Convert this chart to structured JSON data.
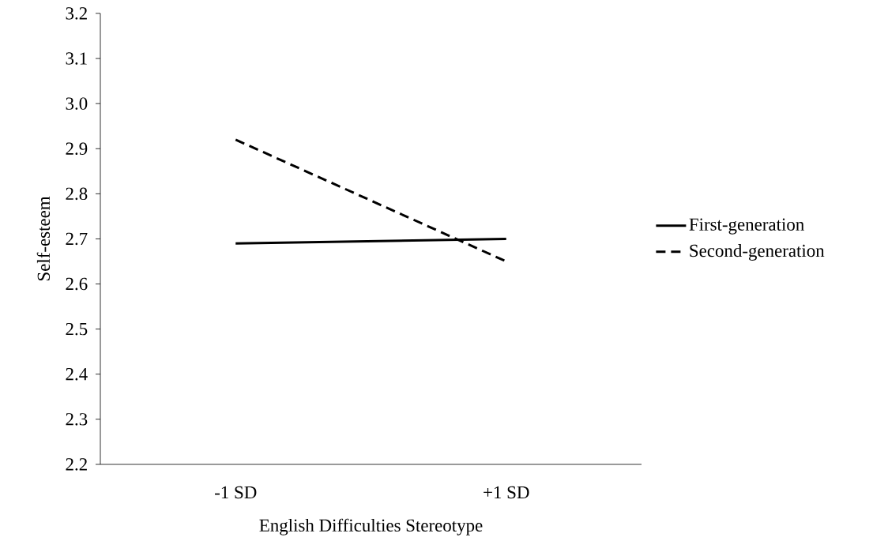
{
  "chart_data": {
    "type": "line",
    "xlabel": "English Difficulties Stereotype",
    "ylabel": "Self-esteem",
    "categories": [
      "-1 SD",
      "+1 SD"
    ],
    "series": [
      {
        "name": "First-generation",
        "color": "#000000",
        "values": [
          2.69,
          2.7
        ],
        "line_style": "solid"
      },
      {
        "name": "Second-generation",
        "color": "#000000",
        "values": [
          2.92,
          2.65
        ],
        "line_style": "dashed"
      }
    ],
    "ylim": [
      2.2,
      3.2
    ],
    "yticks": [
      2.2,
      2.3,
      2.4,
      2.5,
      2.6,
      2.7,
      2.8,
      2.9,
      {
        "value": 3.0,
        "label": "3.0"
      },
      3.1,
      3.2
    ],
    "grid": false,
    "legend": "right",
    "marker": "none"
  }
}
